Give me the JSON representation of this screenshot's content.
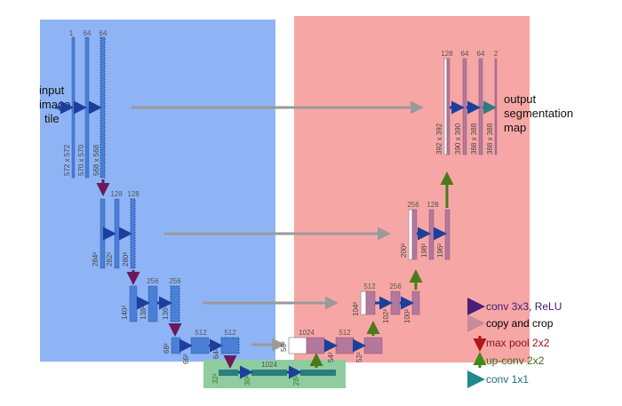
{
  "diagram": {
    "input_label": [
      "input",
      "image",
      "tile"
    ],
    "output_label": [
      "output",
      "segmentation",
      "map"
    ],
    "enc1": {
      "channels": [
        "1",
        "64",
        "64"
      ],
      "sizes": [
        "572 x 572",
        "570 x 570",
        "568 x 568"
      ]
    },
    "enc2": {
      "channels": [
        "128",
        "128"
      ],
      "sizes": [
        "284²",
        "282²",
        "280²"
      ]
    },
    "enc3": {
      "channels": [
        "256",
        "256"
      ],
      "sizes": [
        "140²",
        "138²",
        "136²"
      ]
    },
    "enc4": {
      "channels": [
        "512",
        "512"
      ],
      "sizes": [
        "68²",
        "66²",
        "64²"
      ]
    },
    "bottom": {
      "channels": [
        "1024"
      ],
      "sizes": [
        "32²",
        "30²",
        "28²"
      ]
    },
    "dec4": {
      "channels": [
        "1024",
        "512"
      ],
      "sizes": [
        "56²",
        "54²",
        "52²"
      ]
    },
    "dec3": {
      "channels": [
        "512",
        "256"
      ],
      "sizes": [
        "104²",
        "102²",
        "100²"
      ]
    },
    "dec2": {
      "channels": [
        "256",
        "128"
      ],
      "sizes": [
        "200²",
        "198²",
        "196²"
      ]
    },
    "dec1": {
      "channels": [
        "128",
        "64",
        "64",
        "2"
      ],
      "sizes": [
        "392 x 392",
        "390 x 390",
        "388 x 388",
        "388 x 388"
      ]
    }
  },
  "legend": {
    "items": [
      {
        "label": "conv 3x3, ReLU",
        "color": "#3d1a6e"
      },
      {
        "label": "copy and crop",
        "color": "#000000"
      },
      {
        "label": "max pool 2x2",
        "color": "#8a1010"
      },
      {
        "label": "up-conv 2x2",
        "color": "#3a6b1a"
      },
      {
        "label": "conv 1x1",
        "color": "#1f6f78"
      }
    ]
  },
  "colors": {
    "encoder_bg": "#8fb4f5",
    "decoder_bg": "#f7a6a6",
    "bottleneck_bg": "#8fcc9f",
    "enc_bar": "#4a7fd6",
    "dec_bar": "#b3789b",
    "conv_arrow": "#1d3f9c",
    "copy_arrow": "#9a9a9a",
    "pool_arrow": "#6a1a5a",
    "upconv_arrow": "#4a7a1a",
    "conv1x1_arrow": "#2c7d7f"
  }
}
